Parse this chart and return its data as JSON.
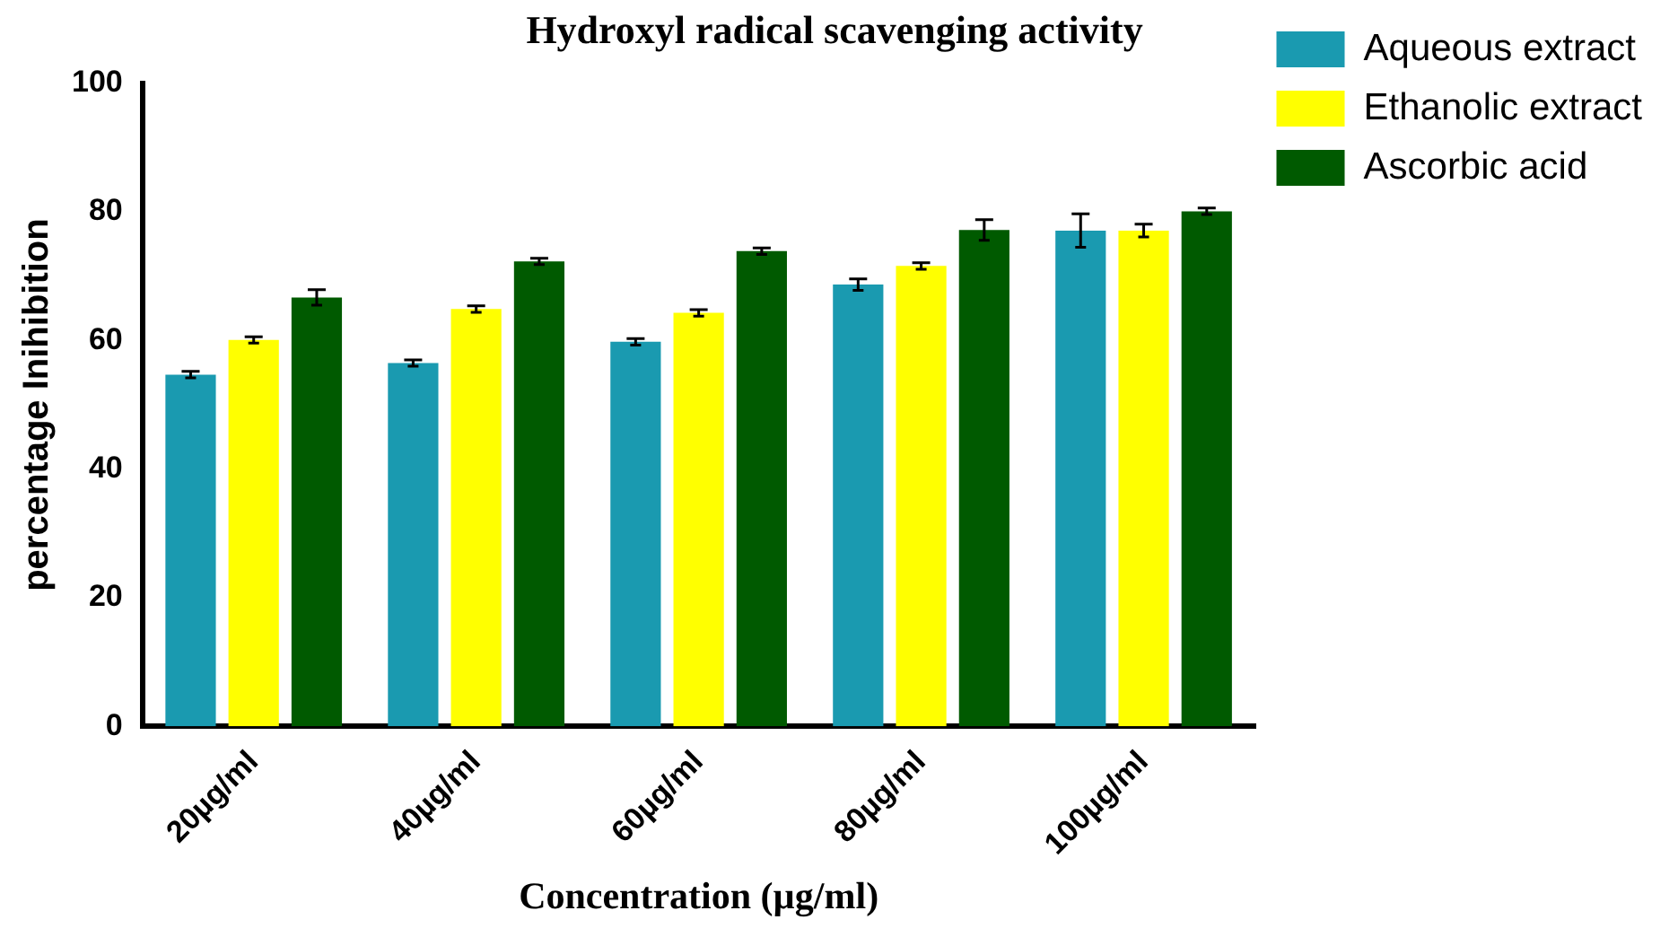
{
  "chart_data": {
    "type": "bar",
    "title": "Hydroxyl radical scavenging activity",
    "xlabel": "Concentration (µg/ml)",
    "ylabel": "percentage Inihibition",
    "categories": [
      "20µg/ml",
      "40µg/ml",
      "60µg/ml",
      "80µg/ml",
      "100µg/ml"
    ],
    "series": [
      {
        "name": "Aqueous extract",
        "color": "#1a9ab0",
        "values": [
          54.7,
          56.5,
          59.8,
          68.7,
          77.1
        ],
        "errors": [
          0.5,
          0.5,
          0.5,
          0.9,
          2.6
        ]
      },
      {
        "name": "Ethanolic extract",
        "color": "#ffff00",
        "values": [
          60.1,
          64.9,
          64.3,
          71.6,
          77.1
        ],
        "errors": [
          0.5,
          0.5,
          0.5,
          0.5,
          1.0
        ]
      },
      {
        "name": "Ascorbic acid",
        "color": "#005a00",
        "values": [
          66.7,
          72.3,
          73.9,
          77.2,
          80.1
        ],
        "errors": [
          1.2,
          0.5,
          0.5,
          1.6,
          0.5
        ]
      }
    ],
    "ylim": [
      0,
      100
    ],
    "yticks": [
      0,
      20,
      40,
      60,
      80,
      100
    ],
    "grid": false,
    "legend": "top right"
  }
}
